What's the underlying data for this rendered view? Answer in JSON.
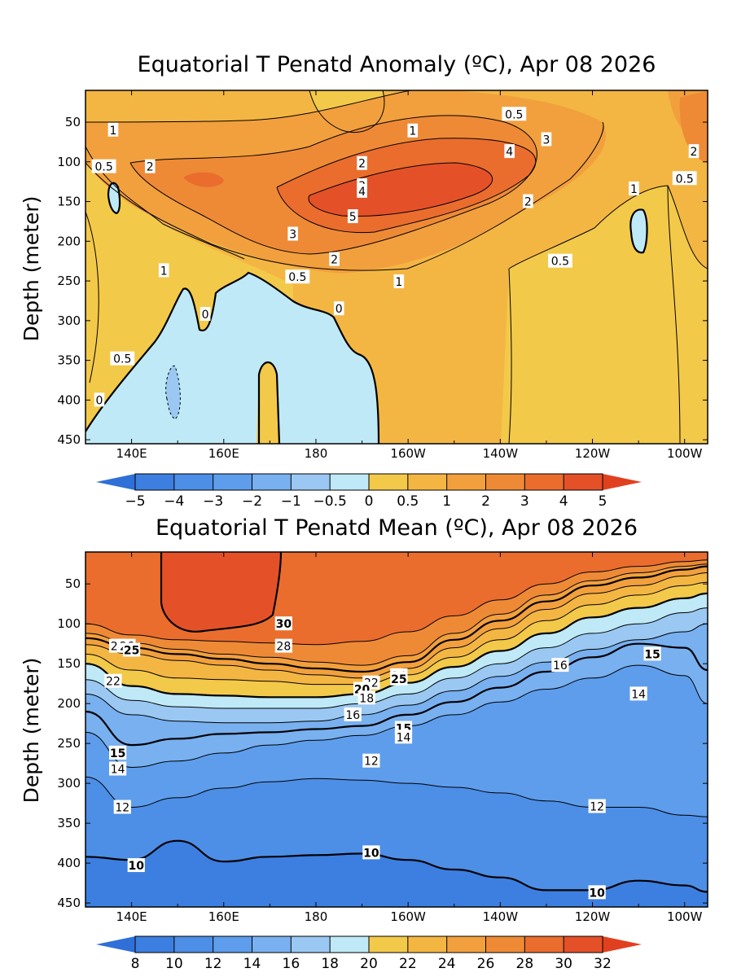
{
  "panels": {
    "anomaly": {
      "title": "Equatorial T Penatd Anomaly (ºC), Apr 08 2026",
      "ylabel": "Depth (meter)",
      "colorbar": {
        "labels": [
          "-5",
          "-4",
          "-3",
          "-2",
          "-1",
          "-0.5",
          "0",
          "0.5",
          "1",
          "2",
          "3",
          "4",
          "5"
        ],
        "colors": [
          "#3c7fe0",
          "#4d8ee6",
          "#5e9dec",
          "#78b0f0",
          "#9ac8f2",
          "#bfe9f6",
          "#f3c94a",
          "#f4b643",
          "#f2a03d",
          "#ee8a36",
          "#ea6d2e",
          "#e45128"
        ]
      }
    },
    "mean": {
      "title": "Equatorial T Penatd Mean (ºC), Apr 08 2026",
      "ylabel": "Depth (meter)",
      "colorbar": {
        "labels": [
          "8",
          "10",
          "12",
          "14",
          "16",
          "18",
          "20",
          "22",
          "24",
          "26",
          "28",
          "30",
          "32"
        ],
        "colors": [
          "#3c7fe0",
          "#4d8ee6",
          "#5e9dec",
          "#78b0f0",
          "#9ac8f2",
          "#bfe9f6",
          "#f3c94a",
          "#f4b643",
          "#f2a03d",
          "#ee8a36",
          "#ea6d2e",
          "#e45128"
        ]
      }
    }
  },
  "chart_data": [
    {
      "type": "heatmap",
      "title": "Equatorial T Penatd Anomaly (ºC), Apr 08 2026",
      "xlabel": "",
      "ylabel": "Depth (meter)",
      "x_range": [
        130,
        265
      ],
      "x_ticks": [
        140,
        160,
        180,
        200,
        220,
        240,
        260
      ],
      "x_tick_labels": [
        "140E",
        "160E",
        "180",
        "160W",
        "140W",
        "120W",
        "100W"
      ],
      "y_range": [
        10,
        455
      ],
      "y_ticks": [
        50,
        100,
        150,
        200,
        250,
        300,
        350,
        400,
        450
      ],
      "y_tick_labels": [
        "50",
        "100",
        "150",
        "200",
        "250",
        "300",
        "350",
        "400",
        "450"
      ],
      "levels": [
        -5,
        -4,
        -3,
        -2,
        -1,
        -0.5,
        0,
        0.5,
        1,
        2,
        3,
        4,
        5
      ],
      "contour_labels": [
        {
          "lon": 136,
          "depth": 60,
          "text": "1"
        },
        {
          "lon": 134,
          "depth": 106,
          "text": "0.5"
        },
        {
          "lon": 144,
          "depth": 106,
          "text": "2"
        },
        {
          "lon": 223,
          "depth": 40,
          "text": "0.5"
        },
        {
          "lon": 201,
          "depth": 61,
          "text": "1"
        },
        {
          "lon": 230,
          "depth": 72,
          "text": "3"
        },
        {
          "lon": 222,
          "depth": 87,
          "text": "4"
        },
        {
          "lon": 190,
          "depth": 102,
          "text": "2"
        },
        {
          "lon": 190,
          "depth": 130,
          "text": "3"
        },
        {
          "lon": 190,
          "depth": 137,
          "text": "4"
        },
        {
          "lon": 188,
          "depth": 169,
          "text": "5"
        },
        {
          "lon": 226,
          "depth": 150,
          "text": "2"
        },
        {
          "lon": 249,
          "depth": 134,
          "text": "1"
        },
        {
          "lon": 260,
          "depth": 121,
          "text": "0.5"
        },
        {
          "lon": 262,
          "depth": 87,
          "text": "2"
        },
        {
          "lon": 175,
          "depth": 191,
          "text": "3"
        },
        {
          "lon": 184,
          "depth": 223,
          "text": "2"
        },
        {
          "lon": 147,
          "depth": 237,
          "text": "1"
        },
        {
          "lon": 176,
          "depth": 245,
          "text": "0.5"
        },
        {
          "lon": 198,
          "depth": 251,
          "text": "1"
        },
        {
          "lon": 233,
          "depth": 225,
          "text": "0.5"
        },
        {
          "lon": 138,
          "depth": 348,
          "text": "0.5"
        },
        {
          "lon": 156,
          "depth": 292,
          "text": "0"
        },
        {
          "lon": 185,
          "depth": 285,
          "text": "0"
        },
        {
          "lon": 133,
          "depth": 400,
          "text": "0"
        }
      ]
    },
    {
      "type": "heatmap",
      "title": "Equatorial T Penatd Mean (ºC), Apr 08 2026",
      "xlabel": "",
      "ylabel": "Depth (meter)",
      "x_range": [
        130,
        265
      ],
      "x_ticks": [
        140,
        160,
        180,
        200,
        220,
        240,
        260
      ],
      "x_tick_labels": [
        "140E",
        "160E",
        "180",
        "160W",
        "140W",
        "120W",
        "100W"
      ],
      "y_range": [
        10,
        455
      ],
      "y_ticks": [
        50,
        100,
        150,
        200,
        250,
        300,
        350,
        400,
        450
      ],
      "y_tick_labels": [
        "50",
        "100",
        "150",
        "200",
        "250",
        "300",
        "350",
        "400",
        "450"
      ],
      "levels": [
        8,
        10,
        12,
        14,
        16,
        18,
        20,
        22,
        24,
        26,
        28,
        30,
        32
      ],
      "isotherms": {
        "lons": [
          130,
          140,
          150,
          160,
          170,
          180,
          190,
          200,
          210,
          220,
          230,
          240,
          250,
          260,
          265
        ],
        "lines": [
          {
            "t": 28,
            "depths": [
              100,
              114,
              120,
              122,
              124,
              126,
              122,
              110,
              90,
              70,
              50,
              35,
              28,
              22,
              20
            ]
          },
          {
            "t": 26,
            "depths": [
              112,
              124,
              132,
              138,
              142,
              148,
              152,
              140,
              112,
              88,
              64,
              46,
              36,
              28,
              25
            ]
          },
          {
            "t": 25,
            "depths": [
              118,
              130,
              138,
              144,
              150,
              156,
              160,
              148,
              120,
              96,
              72,
              52,
              42,
              32,
              28
            ]
          },
          {
            "t": 24,
            "depths": [
              126,
              138,
              146,
              152,
              158,
              164,
              168,
              156,
              130,
              106,
              82,
              62,
              52,
              40,
              36
            ]
          },
          {
            "t": 22,
            "depths": [
              138,
              158,
              168,
              170,
              172,
              176,
              176,
              164,
              142,
              120,
              96,
              76,
              64,
              52,
              48
            ]
          },
          {
            "t": 20,
            "depths": [
              150,
              178,
              188,
              190,
              192,
              192,
              188,
              174,
              154,
              134,
              112,
              92,
              80,
              68,
              62
            ]
          },
          {
            "t": 18,
            "depths": [
              170,
              196,
              204,
              206,
              206,
              206,
              200,
              188,
              168,
              150,
              130,
              112,
              100,
              86,
              80
            ]
          },
          {
            "t": 16,
            "depths": [
              188,
              214,
              222,
              224,
              224,
              222,
              214,
              202,
              184,
              166,
              148,
              132,
              120,
              110,
              100
            ]
          },
          {
            "t": 15,
            "depths": [
              210,
              252,
              244,
              238,
              236,
              232,
              228,
              214,
              198,
              180,
              160,
              142,
              125,
              130,
              158
            ]
          },
          {
            "t": 14,
            "depths": [
              236,
              280,
              272,
              262,
              252,
              246,
              240,
              228,
              214,
              198,
              182,
              168,
              152,
              165,
              200
            ]
          },
          {
            "t": 12,
            "depths": [
              292,
              330,
              318,
              306,
              298,
              294,
              296,
              300,
              305,
              312,
              322,
              330,
              330,
              340,
              342
            ]
          },
          {
            "t": 10,
            "depths": [
              392,
              396,
              372,
              398,
              392,
              390,
              388,
              396,
              408,
              418,
              434,
              434,
              422,
              428,
              436
            ]
          }
        ]
      },
      "contour_labels": [
        {
          "lon": 173,
          "depth": 100,
          "text": "30"
        },
        {
          "lon": 173,
          "depth": 128,
          "text": "28"
        },
        {
          "lon": 137,
          "depth": 128,
          "text": "24"
        },
        {
          "lon": 139,
          "depth": 128,
          "text": "26"
        },
        {
          "lon": 140,
          "depth": 133,
          "text": "25"
        },
        {
          "lon": 136,
          "depth": 172,
          "text": "22"
        },
        {
          "lon": 198,
          "depth": 165,
          "text": "24"
        },
        {
          "lon": 198,
          "depth": 169,
          "text": "25"
        },
        {
          "lon": 192,
          "depth": 174,
          "text": "22"
        },
        {
          "lon": 190,
          "depth": 182,
          "text": "20"
        },
        {
          "lon": 191,
          "depth": 193,
          "text": "18"
        },
        {
          "lon": 188,
          "depth": 214,
          "text": "16"
        },
        {
          "lon": 199,
          "depth": 231,
          "text": "15"
        },
        {
          "lon": 199,
          "depth": 242,
          "text": "14"
        },
        {
          "lon": 137,
          "depth": 262,
          "text": "15"
        },
        {
          "lon": 137,
          "depth": 282,
          "text": "14"
        },
        {
          "lon": 138,
          "depth": 330,
          "text": "12"
        },
        {
          "lon": 192,
          "depth": 272,
          "text": "12"
        },
        {
          "lon": 241,
          "depth": 329,
          "text": "12"
        },
        {
          "lon": 233,
          "depth": 152,
          "text": "16"
        },
        {
          "lon": 250,
          "depth": 188,
          "text": "14"
        },
        {
          "lon": 253,
          "depth": 138,
          "text": "15"
        },
        {
          "lon": 141,
          "depth": 403,
          "text": "10"
        },
        {
          "lon": 192,
          "depth": 387,
          "text": "10"
        },
        {
          "lon": 241,
          "depth": 437,
          "text": "10"
        }
      ]
    }
  ]
}
